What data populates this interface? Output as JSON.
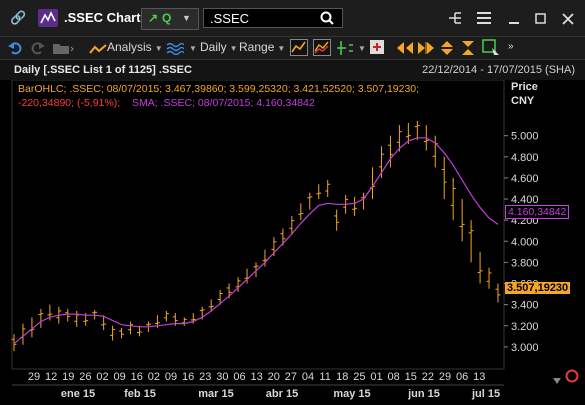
{
  "window": {
    "title": ".SSEC Chart",
    "quote_label": "Q",
    "search_value": ".SSEC"
  },
  "toolbar": {
    "analysis_label": "Analysis",
    "interval_label": "Daily",
    "range_label": "Range"
  },
  "header": {
    "title": "Daily [.SSEC List 1 of 1125] .SSEC",
    "date_range": "22/12/2014 - 17/07/2015 (SHA)"
  },
  "legend": {
    "ohlc_line1": "BarOHLC; .SSEC; 08/07/2015; 3.467,39860; 3.599,25320; 3.421,52520; 3.507,19230;",
    "ohlc_line2": "-220,34890; (-5,91%);",
    "sma_line": "SMA; .SSEC; 08/07/2015; 4.160,34842"
  },
  "axis": {
    "price_label": "Price",
    "currency_label": "CNY",
    "sma_last_tag": "4.160,34842",
    "last_price_tag": "3.507,19230"
  },
  "colors": {
    "bars": "#f5a623",
    "sma": "#c43ee0",
    "price_tag": "#f5a623",
    "ohlc_legend": "#f5a623",
    "change_negative": "#ff3b3b"
  },
  "chart_data": {
    "type": "line",
    "series": [
      {
        "name": "BarOHLC",
        "style": "ohlc",
        "approx_high_low": [
          [
            3.12,
            2.96
          ],
          [
            3.22,
            3.02
          ],
          [
            3.28,
            3.09
          ],
          [
            3.36,
            3.18
          ],
          [
            3.4,
            3.25
          ],
          [
            3.38,
            3.22
          ],
          [
            3.36,
            3.24
          ],
          [
            3.34,
            3.19
          ],
          [
            3.32,
            3.2
          ],
          [
            3.35,
            3.26
          ],
          [
            3.3,
            3.16
          ],
          [
            3.2,
            3.06
          ],
          [
            3.18,
            3.08
          ],
          [
            3.24,
            3.12
          ],
          [
            3.2,
            3.1
          ],
          [
            3.24,
            3.14
          ],
          [
            3.3,
            3.18
          ],
          [
            3.34,
            3.24
          ],
          [
            3.32,
            3.2
          ],
          [
            3.28,
            3.2
          ],
          [
            3.32,
            3.22
          ],
          [
            3.38,
            3.26
          ],
          [
            3.45,
            3.34
          ],
          [
            3.54,
            3.4
          ],
          [
            3.6,
            3.46
          ],
          [
            3.66,
            3.52
          ],
          [
            3.74,
            3.6
          ],
          [
            3.8,
            3.66
          ],
          [
            3.92,
            3.76
          ],
          [
            4.04,
            3.86
          ],
          [
            4.12,
            3.96
          ],
          [
            4.24,
            4.06
          ],
          [
            4.36,
            4.2
          ],
          [
            4.46,
            4.3
          ],
          [
            4.54,
            4.4
          ],
          [
            4.58,
            4.42
          ],
          [
            4.3,
            4.1
          ],
          [
            4.44,
            4.26
          ],
          [
            4.42,
            4.24
          ],
          [
            4.46,
            4.3
          ],
          [
            4.7,
            4.4
          ],
          [
            4.9,
            4.6
          ],
          [
            5.0,
            4.7
          ],
          [
            5.1,
            4.85
          ],
          [
            5.12,
            4.92
          ],
          [
            5.14,
            4.96
          ],
          [
            5.1,
            4.86
          ],
          [
            5.0,
            4.7
          ],
          [
            4.8,
            4.4
          ],
          [
            4.6,
            4.2
          ],
          [
            4.4,
            4.0
          ],
          [
            4.2,
            3.8
          ],
          [
            3.9,
            3.6
          ],
          [
            3.75,
            3.55
          ],
          [
            3.6,
            3.42
          ]
        ]
      },
      {
        "name": "SMA",
        "approx_values": [
          3.03,
          3.1,
          3.17,
          3.24,
          3.28,
          3.3,
          3.31,
          3.31,
          3.3,
          3.3,
          3.29,
          3.25,
          3.21,
          3.2,
          3.19,
          3.19,
          3.2,
          3.21,
          3.22,
          3.22,
          3.24,
          3.28,
          3.34,
          3.41,
          3.48,
          3.56,
          3.64,
          3.72,
          3.8,
          3.89,
          3.98,
          4.07,
          4.17,
          4.26,
          4.34,
          4.36,
          4.35,
          4.35,
          4.36,
          4.4,
          4.52,
          4.65,
          4.78,
          4.88,
          4.95,
          4.98,
          4.98,
          4.93,
          4.84,
          4.72,
          4.58,
          4.44,
          4.32,
          4.22,
          4.16
        ]
      }
    ],
    "ylabel": "Price CNY",
    "ylim": [
      2.8,
      5.3
    ],
    "y_ticks": [
      "3.000",
      "3.200",
      "3.400",
      "3.600",
      "3.800",
      "4.000",
      "4.200",
      "4.400",
      "4.600",
      "4.800",
      "5.000"
    ],
    "x_day_ticks": [
      "29",
      "12",
      "19",
      "26",
      "02",
      "09",
      "16",
      "02",
      "09",
      "16",
      "23",
      "30",
      "06",
      "13",
      "20",
      "27",
      "04",
      "11",
      "18",
      "25",
      "01",
      "08",
      "15",
      "22",
      "29",
      "06",
      "13"
    ],
    "x_month_labels": [
      "ene 15",
      "feb 15",
      "mar 15",
      "abr 15",
      "may 15",
      "jun 15",
      "jul 15"
    ],
    "grid": false
  }
}
